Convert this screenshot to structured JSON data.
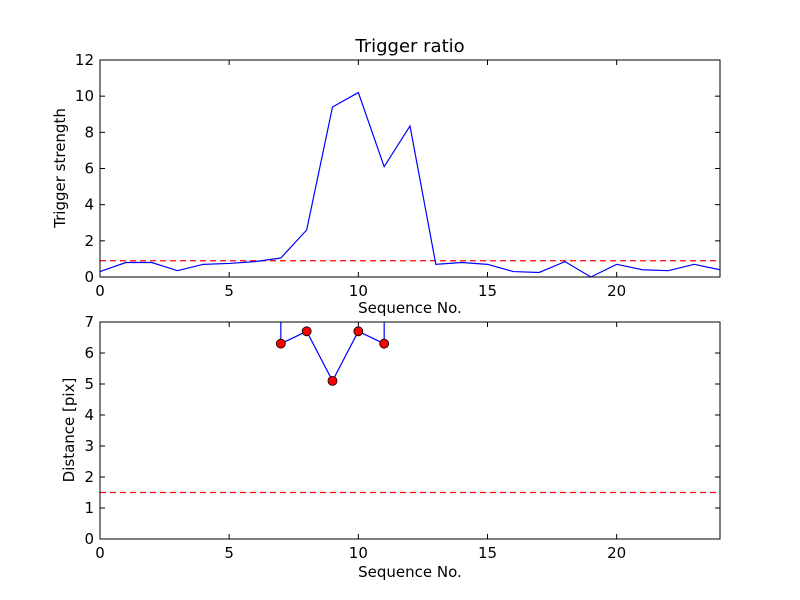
{
  "chart_data": [
    {
      "type": "line",
      "title": "Trigger ratio",
      "xlabel": "Sequence No.",
      "ylabel": "Trigger strength",
      "xlim": [
        0,
        24
      ],
      "ylim": [
        0,
        12
      ],
      "xticks": [
        "0",
        "5",
        "10",
        "15",
        "20"
      ],
      "yticks": [
        "0",
        "2",
        "4",
        "6",
        "8",
        "10",
        "12"
      ],
      "grid": false,
      "series": [
        {
          "color": "#0000ff",
          "style": "solid",
          "x": [
            0,
            1,
            2,
            3,
            4,
            5,
            6,
            7,
            8,
            9,
            10,
            11,
            12,
            13,
            14,
            15,
            16,
            17,
            18,
            19,
            20,
            21,
            22,
            23,
            24
          ],
          "y": [
            0.3,
            0.8,
            0.8,
            0.35,
            0.7,
            0.75,
            0.85,
            1.05,
            2.6,
            9.4,
            10.2,
            6.1,
            8.35,
            0.7,
            0.8,
            0.7,
            0.3,
            0.25,
            0.85,
            0.0,
            0.7,
            0.4,
            0.35,
            0.7,
            0.4
          ]
        }
      ],
      "reference_lines": [
        {
          "y": 0.9,
          "color": "#ff0000",
          "style": "dashed"
        }
      ]
    },
    {
      "type": "line",
      "title": "",
      "xlabel": "Sequence No.",
      "ylabel": "Distance [pix]",
      "xlim": [
        0,
        24
      ],
      "ylim": [
        0,
        7
      ],
      "xticks": [
        "0",
        "5",
        "10",
        "15",
        "20"
      ],
      "yticks": [
        "0",
        "1",
        "2",
        "3",
        "4",
        "5",
        "6",
        "7"
      ],
      "grid": false,
      "series": [
        {
          "color": "#0000ff",
          "style": "solid",
          "marker_color": "#ff0000",
          "x": [
            7,
            8,
            9,
            10,
            11
          ],
          "y": [
            6.3,
            6.7,
            5.1,
            6.7,
            6.3
          ]
        }
      ],
      "vertical_segments": [
        {
          "x": 7,
          "y_from": 6.3,
          "y_to": 7.0,
          "color": "#0000ff"
        },
        {
          "x": 11,
          "y_from": 6.3,
          "y_to": 7.0,
          "color": "#0000ff"
        }
      ],
      "reference_lines": [
        {
          "y": 1.5,
          "color": "#ff0000",
          "style": "dashed"
        }
      ]
    }
  ]
}
